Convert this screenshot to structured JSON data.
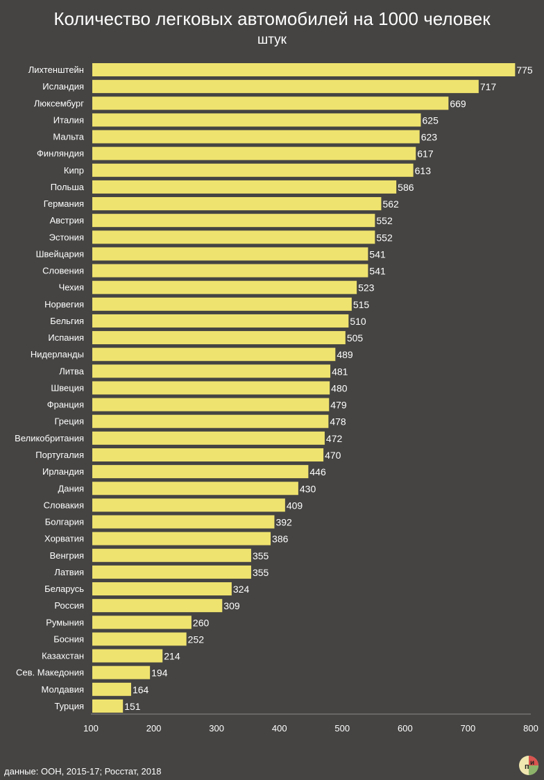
{
  "chart_data": {
    "type": "bar",
    "orientation": "horizontal",
    "title": "Количество легковых автомобилей на 1000 человек",
    "subtitle": "штук",
    "xlim": [
      100,
      800
    ],
    "xticks": [
      100,
      200,
      300,
      400,
      500,
      600,
      700,
      800
    ],
    "categories": [
      "Лихтенштейн",
      "Исландия",
      "Люксембург",
      "Италия",
      "Мальта",
      "Финляндия",
      "Кипр",
      "Польша",
      "Германия",
      "Австрия",
      "Эстония",
      "Швейцария",
      "Словения",
      "Чехия",
      "Норвегия",
      "Бельгия",
      "Испания",
      "Нидерланды",
      "Литва",
      "Швеция",
      "Франция",
      "Греция",
      "Великобритания",
      "Португалия",
      "Ирландия",
      "Дания",
      "Словакия",
      "Болгария",
      "Хорватия",
      "Венгрия",
      "Латвия",
      "Беларусь",
      "Россия",
      "Румыния",
      "Босния",
      "Казахстан",
      "Сев. Македония",
      "Молдавия",
      "Турция"
    ],
    "values": [
      775,
      717,
      669,
      625,
      623,
      617,
      613,
      586,
      562,
      552,
      552,
      541,
      541,
      523,
      515,
      510,
      505,
      489,
      481,
      480,
      479,
      478,
      472,
      470,
      446,
      430,
      409,
      392,
      386,
      355,
      355,
      324,
      309,
      260,
      252,
      214,
      194,
      164,
      151
    ],
    "bar_color": "#efe36f",
    "grid": false
  },
  "footer": {
    "source": "данные: ООН, 2015-17; Росстат, 2018",
    "logo_text": "ПИ"
  }
}
